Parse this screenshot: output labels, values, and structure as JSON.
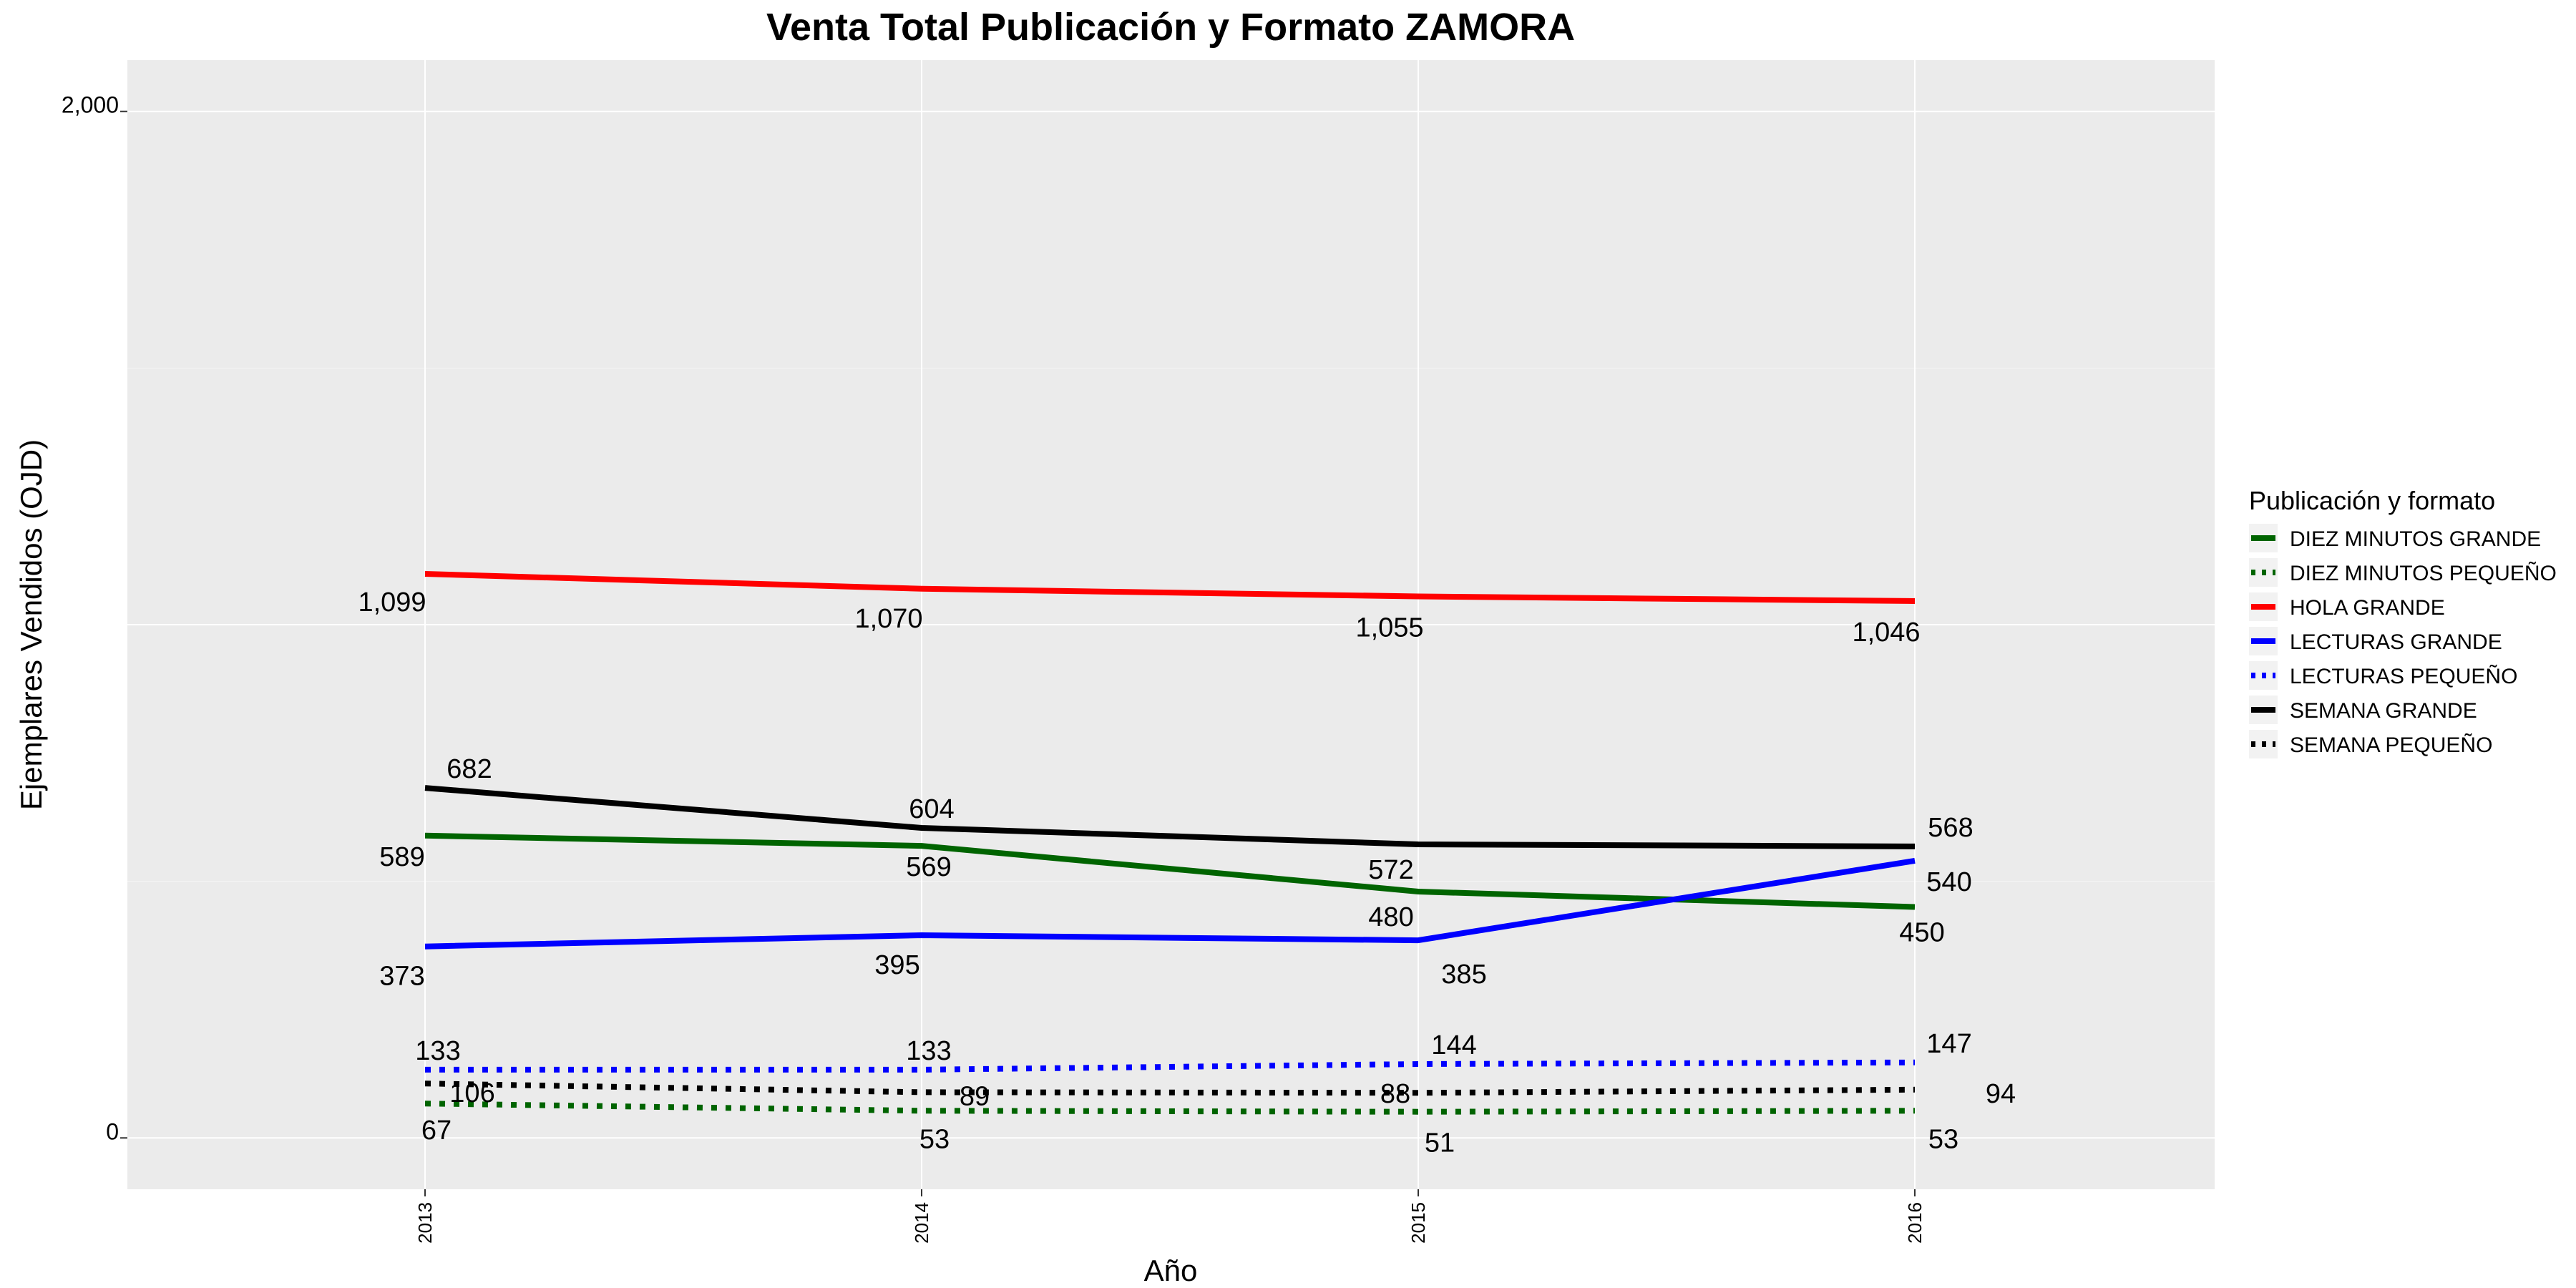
{
  "chart_data": {
    "type": "line",
    "title": "Venta Total Publicación y Formato  ZAMORA",
    "xlabel": "Año",
    "ylabel": "Ejemplares Vendidos (OJD)",
    "x": [
      "2013",
      "2014",
      "2015",
      "2016"
    ],
    "ylim": [
      -100,
      2100
    ],
    "y_ticks": [
      0,
      2000
    ],
    "y_tick_labels": [
      "0",
      "2,000"
    ],
    "grid": true,
    "legend_title": "Publicación y formato",
    "legend_position": "right",
    "series": [
      {
        "name": "DIEZ MINUTOS GRANDE",
        "color": "#006400",
        "style": "solid",
        "values": [
          589,
          569,
          480,
          450
        ],
        "labels": [
          "589",
          "569",
          "480",
          "450"
        ]
      },
      {
        "name": "DIEZ MINUTOS PEQUEÑO",
        "color": "#006400",
        "style": "dotted",
        "values": [
          67,
          53,
          51,
          53
        ],
        "labels": [
          "67",
          "53",
          "51",
          "53"
        ]
      },
      {
        "name": "HOLA GRANDE",
        "color": "#ff0000",
        "style": "solid",
        "values": [
          1099,
          1070,
          1055,
          1046
        ],
        "labels": [
          "1,099",
          "1,070",
          "1,055",
          "1,046"
        ]
      },
      {
        "name": "LECTURAS GRANDE",
        "color": "#0000ff",
        "style": "solid",
        "values": [
          373,
          395,
          385,
          540
        ],
        "labels": [
          "373",
          "395",
          "385",
          "540"
        ]
      },
      {
        "name": "LECTURAS PEQUEÑO",
        "color": "#0000ff",
        "style": "dotted",
        "values": [
          133,
          133,
          144,
          147
        ],
        "labels": [
          "133",
          "133",
          "144",
          "147"
        ]
      },
      {
        "name": "SEMANA GRANDE",
        "color": "#000000",
        "style": "solid",
        "values": [
          682,
          604,
          572,
          568
        ],
        "labels": [
          "682",
          "604",
          "572",
          "568"
        ]
      },
      {
        "name": "SEMANA PEQUEÑO",
        "color": "#000000",
        "style": "dotted",
        "values": [
          106,
          89,
          88,
          94
        ],
        "labels": [
          "106",
          "89",
          "88",
          "94"
        ]
      }
    ]
  }
}
